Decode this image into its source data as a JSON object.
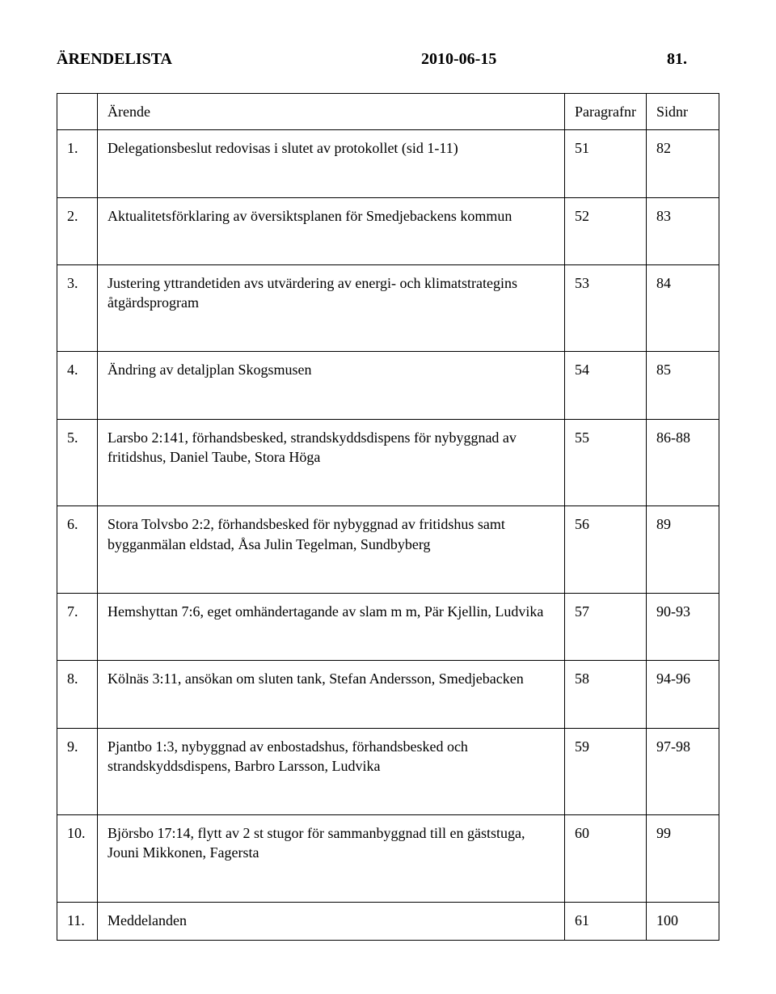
{
  "header": {
    "title": "ÄRENDELISTA",
    "date": "2010-06-15",
    "page": "81."
  },
  "table": {
    "columns": {
      "num": "",
      "desc": "Ärende",
      "para": "Paragrafnr",
      "sid": "Sidnr"
    },
    "rows": [
      {
        "num": "1.",
        "desc": "Delegationsbeslut redovisas i slutet av protokollet (sid 1-11)",
        "para": "51",
        "sid": "82"
      },
      {
        "num": "2.",
        "desc": "Aktualitetsförklaring av översiktsplanen för Smedjebackens kommun",
        "para": "52",
        "sid": "83"
      },
      {
        "num": "3.",
        "desc": "Justering yttrandetiden avs utvärdering av energi- och klimatstrategins åtgärdsprogram",
        "para": "53",
        "sid": "84"
      },
      {
        "num": "4.",
        "desc": "Ändring av detaljplan Skogsmusen",
        "para": "54",
        "sid": "85"
      },
      {
        "num": "5.",
        "desc": "Larsbo 2:141, förhandsbesked, strandskyddsdispens för nybyggnad av fritidshus, Daniel Taube, Stora Höga",
        "para": "55",
        "sid": "86-88"
      },
      {
        "num": "6.",
        "desc": "Stora Tolvsbo 2:2, förhandsbesked för nybyggnad av fritidshus samt bygganmälan eldstad, Åsa Julin Tegelman, Sundbyberg",
        "para": "56",
        "sid": "89"
      },
      {
        "num": "7.",
        "desc": "Hemshyttan 7:6, eget omhändertagande av slam m m, Pär Kjellin, Ludvika",
        "para": "57",
        "sid": "90-93"
      },
      {
        "num": "8.",
        "desc": "Kölnäs 3:11, ansökan om sluten tank, Stefan Andersson, Smedjebacken",
        "para": "58",
        "sid": "94-96"
      },
      {
        "num": "9.",
        "desc": "Pjantbo 1:3, nybyggnad av enbostadshus, förhandsbesked och strandskyddsdispens, Barbro Larsson, Ludvika",
        "para": "59",
        "sid": "97-98"
      },
      {
        "num": "10.",
        "desc": "Björsbo 17:14, flytt av 2 st stugor för sammanbyggnad till en gäststuga, Jouni Mikkonen, Fagersta",
        "para": "60",
        "sid": "99"
      },
      {
        "num": "11.",
        "desc": "Meddelanden",
        "para": "61",
        "sid": "100"
      }
    ]
  }
}
